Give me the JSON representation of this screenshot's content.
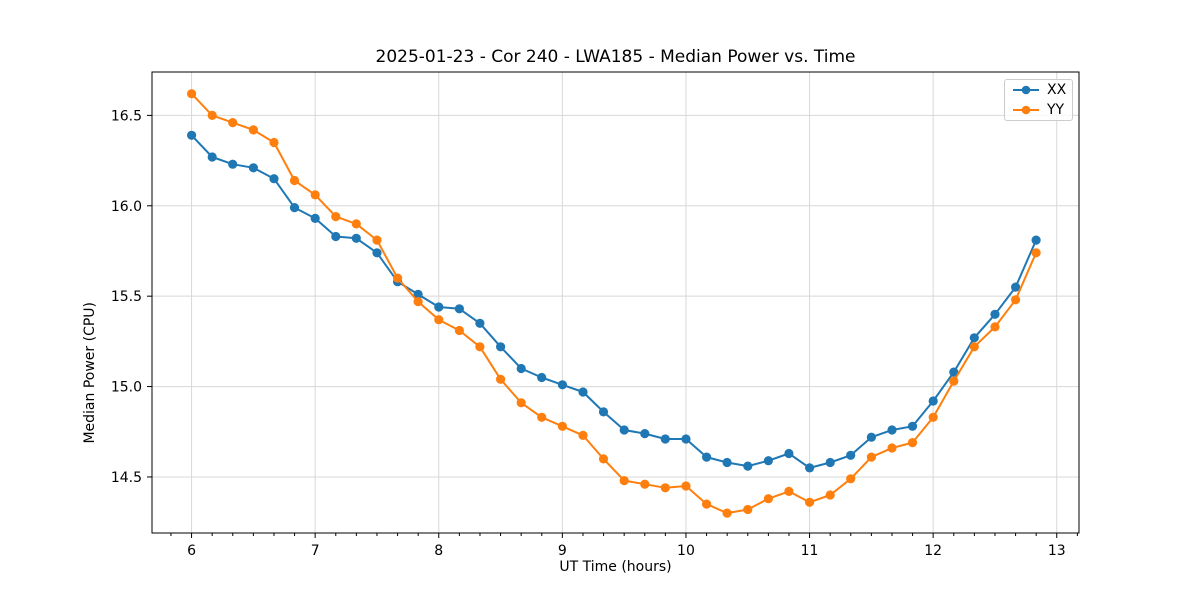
{
  "figure": {
    "title": "2025-01-23 - Cor 240 - LWA185 - Median Power vs. Time",
    "xlabel": "UT Time (hours)",
    "ylabel": "Median Power (CPU)"
  },
  "legend": {
    "position": "upper-right",
    "items": [
      {
        "label": "XX",
        "color": "#1f77b4"
      },
      {
        "label": "YY",
        "color": "#ff7f0e"
      }
    ]
  },
  "colors": {
    "series_xx": "#1f77b4",
    "series_yy": "#ff7f0e",
    "grid": "#d8d8d8",
    "axis": "#000000",
    "background": "#ffffff",
    "legend_border": "#cccccc"
  },
  "chart_data": {
    "type": "line",
    "title": "2025-01-23 - Cor 240 - LWA185 - Median Power vs. Time",
    "xlabel": "UT Time (hours)",
    "ylabel": "Median Power (CPU)",
    "marker": "circle",
    "grid": true,
    "legend_position": "upper right",
    "xlim": [
      5.68,
      13.18
    ],
    "ylim": [
      14.19,
      16.74
    ],
    "xticks": [
      6,
      7,
      8,
      9,
      10,
      11,
      12,
      13
    ],
    "yticks": [
      14.5,
      15.0,
      15.5,
      16.0,
      16.5
    ],
    "x_minor_step": 0.16667,
    "x": [
      6.0,
      6.167,
      6.333,
      6.5,
      6.667,
      6.833,
      7.0,
      7.167,
      7.333,
      7.5,
      7.667,
      7.833,
      8.0,
      8.167,
      8.333,
      8.5,
      8.667,
      8.833,
      9.0,
      9.167,
      9.333,
      9.5,
      9.667,
      9.833,
      10.0,
      10.167,
      10.333,
      10.5,
      10.667,
      10.833,
      11.0,
      11.167,
      11.333,
      11.5,
      11.667,
      11.833,
      12.0,
      12.167,
      12.333,
      12.5,
      12.667,
      12.833
    ],
    "series": [
      {
        "name": "XX",
        "color": "#1f77b4",
        "values": [
          16.39,
          16.27,
          16.23,
          16.21,
          16.15,
          15.99,
          15.93,
          15.83,
          15.82,
          15.74,
          15.58,
          15.51,
          15.44,
          15.43,
          15.35,
          15.22,
          15.1,
          15.05,
          15.01,
          14.97,
          14.86,
          14.76,
          14.74,
          14.71,
          14.71,
          14.61,
          14.58,
          14.56,
          14.59,
          14.63,
          14.55,
          14.58,
          14.62,
          14.72,
          14.76,
          14.78,
          14.92,
          15.08,
          15.27,
          15.4,
          15.55,
          15.81
        ]
      },
      {
        "name": "YY",
        "color": "#ff7f0e",
        "values": [
          16.62,
          16.5,
          16.46,
          16.42,
          16.35,
          16.14,
          16.06,
          15.94,
          15.9,
          15.81,
          15.6,
          15.47,
          15.37,
          15.31,
          15.22,
          15.04,
          14.91,
          14.83,
          14.78,
          14.73,
          14.6,
          14.48,
          14.46,
          14.44,
          14.45,
          14.35,
          14.3,
          14.32,
          14.38,
          14.42,
          14.36,
          14.4,
          14.49,
          14.61,
          14.66,
          14.69,
          14.83,
          15.03,
          15.22,
          15.33,
          15.48,
          15.74
        ]
      }
    ]
  }
}
